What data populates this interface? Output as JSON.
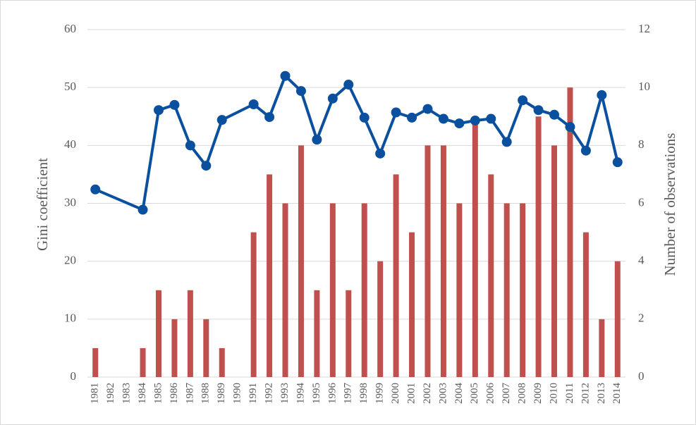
{
  "chart_data": {
    "type": "combo",
    "y_label": "Gini coefficient",
    "y2_label": "Number of observations",
    "categories": [
      "1981",
      "1982",
      "1983",
      "1984",
      "1985",
      "1986",
      "1987",
      "1988",
      "1989",
      "1990",
      "1991",
      "1992",
      "1993",
      "1994",
      "1995",
      "1996",
      "1997",
      "1998",
      "1999",
      "2000",
      "2001",
      "2002",
      "2003",
      "2004",
      "2005",
      "2006",
      "2007",
      "2008",
      "2009",
      "2010",
      "2011",
      "2012",
      "2013",
      "2014"
    ],
    "ylim": [
      0,
      60
    ],
    "yticks": [
      0,
      10,
      20,
      30,
      40,
      50,
      60
    ],
    "y2lim": [
      0,
      12
    ],
    "y2ticks": [
      0,
      2,
      4,
      6,
      8,
      10,
      12
    ],
    "grid": true,
    "series": [
      {
        "type": "bar",
        "axis": "y2",
        "color": "#c0504d",
        "values": [
          1,
          0,
          0,
          1,
          3,
          2,
          3,
          2,
          1,
          0,
          5,
          7,
          6,
          8,
          3,
          6,
          3,
          6,
          4,
          7,
          5,
          8,
          8,
          6,
          9,
          7,
          6,
          6,
          9,
          8,
          10,
          5,
          2,
          4
        ]
      },
      {
        "type": "line",
        "color": "#0a509e",
        "x": [
          "1981",
          "1984",
          "1985",
          "1986",
          "1987",
          "1988",
          "1989",
          "1991",
          "1992",
          "1993",
          "1994",
          "1995",
          "1996",
          "1997",
          "1998",
          "1999",
          "2000",
          "2001",
          "2002",
          "2003",
          "2004",
          "2005",
          "2006",
          "2007",
          "2008",
          "2009",
          "2010",
          "2011",
          "2012",
          "2013",
          "2014"
        ],
        "values": [
          32.4,
          28.9,
          46.1,
          47,
          40,
          36.5,
          44.4,
          47.1,
          44.9,
          52,
          49.4,
          41,
          48.1,
          50.5,
          44.8,
          38.6,
          45.7,
          44.8,
          46.3,
          44.6,
          43.8,
          44.3,
          44.6,
          40.6,
          47.8,
          46.1,
          45.3,
          43.2,
          39.1,
          48.7,
          37.1
        ]
      }
    ]
  }
}
